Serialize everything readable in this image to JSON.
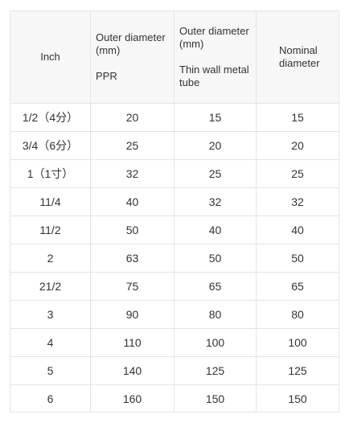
{
  "headers": {
    "inch": "Inch",
    "ppr_line1": "Outer diameter (mm)",
    "ppr_line2": "PPR",
    "metal_line1": "Outer diameter (mm)",
    "metal_line2": "Thin wall metal tube",
    "nominal": "Nominal diameter"
  },
  "rows": [
    {
      "inch": "1/2（4分）",
      "ppr": "20",
      "metal": "15",
      "nominal": "15"
    },
    {
      "inch": "3/4（6分）",
      "ppr": "25",
      "metal": "20",
      "nominal": "20"
    },
    {
      "inch": "1（1寸）",
      "ppr": "32",
      "metal": "25",
      "nominal": "25"
    },
    {
      "inch": "11/4",
      "ppr": "40",
      "metal": "32",
      "nominal": "32"
    },
    {
      "inch": "11/2",
      "ppr": "50",
      "metal": "40",
      "nominal": "40"
    },
    {
      "inch": "2",
      "ppr": "63",
      "metal": "50",
      "nominal": "50"
    },
    {
      "inch": "21/2",
      "ppr": "75",
      "metal": "65",
      "nominal": "65"
    },
    {
      "inch": "3",
      "ppr": "90",
      "metal": "80",
      "nominal": "80"
    },
    {
      "inch": "4",
      "ppr": "110",
      "metal": "100",
      "nominal": "100"
    },
    {
      "inch": "5",
      "ppr": "140",
      "metal": "125",
      "nominal": "125"
    },
    {
      "inch": "6",
      "ppr": "160",
      "metal": "150",
      "nominal": "150"
    }
  ]
}
